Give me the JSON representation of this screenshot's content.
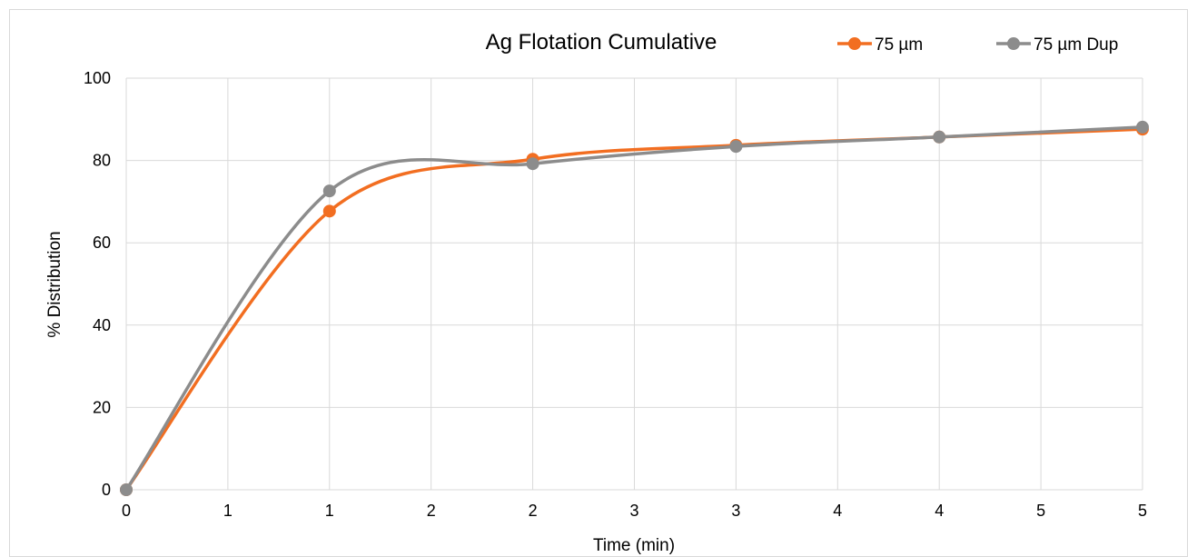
{
  "chart_data": {
    "type": "line",
    "title": "Ag Flotation Cumulative",
    "xlabel": "Time (min)",
    "ylabel": "% Distribution",
    "x_tick_labels": [
      "0",
      "1",
      "1",
      "2",
      "2",
      "3",
      "3",
      "4",
      "4",
      "5",
      "5"
    ],
    "y_ticks": [
      0,
      20,
      40,
      60,
      80,
      100
    ],
    "ylim": [
      0,
      100
    ],
    "grid": true,
    "legend_position": "top-right",
    "series": [
      {
        "name": "75 µm",
        "color": "#f26e21",
        "points": [
          [
            0,
            0
          ],
          [
            1,
            67.7
          ],
          [
            2,
            80.3
          ],
          [
            3,
            83.7
          ],
          [
            4,
            85.7
          ],
          [
            5,
            87.6
          ]
        ]
      },
      {
        "name": "75 µm Dup",
        "color": "#8c8c8c",
        "points": [
          [
            0,
            0
          ],
          [
            1,
            72.6
          ],
          [
            2,
            79.2
          ],
          [
            3,
            83.4
          ],
          [
            4,
            85.7
          ],
          [
            5,
            88.1
          ]
        ]
      }
    ]
  }
}
